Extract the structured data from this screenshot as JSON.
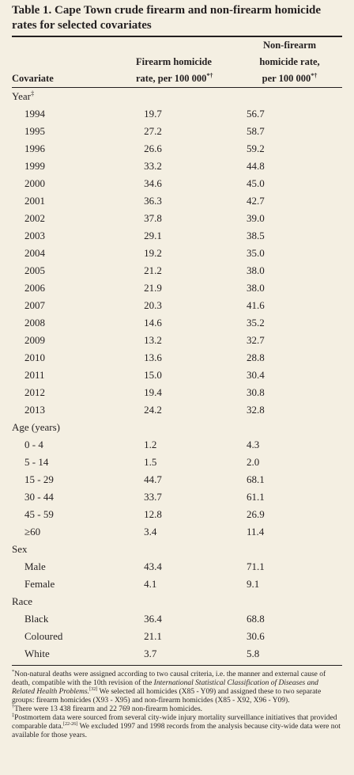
{
  "title": "Table 1. Cape Town crude firearm and non-firearm homicide rates for selected covariates",
  "table": {
    "columns": [
      {
        "lines": [
          "Covariate"
        ]
      },
      {
        "lines": [
          "Firearm homicide",
          "rate, per 100 000"
        ],
        "sup": "*†"
      },
      {
        "lines": [
          "Non-firearm",
          "homicide rate,",
          "per 100 000"
        ],
        "sup": "*†"
      }
    ],
    "sections": [
      {
        "label": "Year",
        "sup": "‡",
        "rows": [
          [
            "1994",
            "19.7",
            "56.7"
          ],
          [
            "1995",
            "27.2",
            "58.7"
          ],
          [
            "1996",
            "26.6",
            "59.2"
          ],
          [
            "1999",
            "33.2",
            "44.8"
          ],
          [
            "2000",
            "34.6",
            "45.0"
          ],
          [
            "2001",
            "36.3",
            "42.7"
          ],
          [
            "2002",
            "37.8",
            "39.0"
          ],
          [
            "2003",
            "29.1",
            "38.5"
          ],
          [
            "2004",
            "19.2",
            "35.0"
          ],
          [
            "2005",
            "21.2",
            "38.0"
          ],
          [
            "2006",
            "21.9",
            "38.0"
          ],
          [
            "2007",
            "20.3",
            "41.6"
          ],
          [
            "2008",
            "14.6",
            "35.2"
          ],
          [
            "2009",
            "13.2",
            "32.7"
          ],
          [
            "2010",
            "13.6",
            "28.8"
          ],
          [
            "2011",
            "15.0",
            "30.4"
          ],
          [
            "2012",
            "19.4",
            "30.8"
          ],
          [
            "2013",
            "24.2",
            "32.8"
          ]
        ]
      },
      {
        "label": "Age (years)",
        "rows": [
          [
            "0 - 4",
            "1.2",
            "4.3"
          ],
          [
            "5 - 14",
            "1.5",
            "2.0"
          ],
          [
            "15 - 29",
            "44.7",
            "68.1"
          ],
          [
            "30 - 44",
            "33.7",
            "61.1"
          ],
          [
            "45 - 59",
            "12.8",
            "26.9"
          ],
          [
            "≥60",
            "3.4",
            "11.4"
          ]
        ]
      },
      {
        "label": "Sex",
        "rows": [
          [
            "Male",
            "43.4",
            "71.1"
          ],
          [
            "Female",
            "4.1",
            "9.1"
          ]
        ]
      },
      {
        "label": "Race",
        "rows": [
          [
            "Black",
            "36.4",
            "68.8"
          ],
          [
            "Coloured",
            "21.1",
            "30.6"
          ],
          [
            "White",
            "3.7",
            "5.8"
          ]
        ]
      }
    ]
  },
  "footnotes": [
    [
      {
        "text": "*",
        "style": "sup"
      },
      {
        "text": "Non-natural deaths were assigned according to two causal criteria, i.e. the manner and external cause of death, compatible with the 10th revision of the "
      },
      {
        "text": "International Statistical Classification of Diseases and Related Health Problems.",
        "style": "italic"
      },
      {
        "text": "[32]",
        "style": "sup"
      },
      {
        "text": " We selected all homicides (X85 - Y09) and assigned these to two separate groups: firearm homicides (X93 - X95) and non-firearm homicides (X85 - X92, X96 - Y09)."
      }
    ],
    [
      {
        "text": "†",
        "style": "sup"
      },
      {
        "text": "There were 13 438 firearm and 22 769 non-firearm homicides."
      }
    ],
    [
      {
        "text": "‡",
        "style": "sup"
      },
      {
        "text": "Postmortem data were sourced from several city-wide injury mortality surveillance initiatives that provided comparable data."
      },
      {
        "text": "[22-26]",
        "style": "sup"
      },
      {
        "text": " We excluded 1997 and 1998 records from the analysis because city-wide data were not available for those years."
      }
    ]
  ]
}
